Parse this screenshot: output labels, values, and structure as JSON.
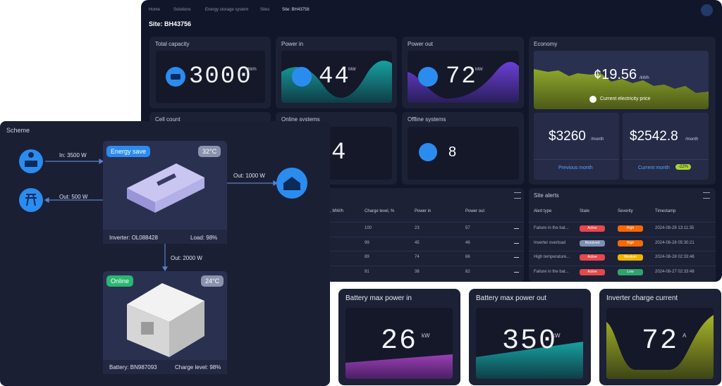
{
  "breadcrumb": [
    "Home",
    "Solutions",
    "Energy storage system",
    "Sites",
    "Site: BH43756"
  ],
  "title": "Site: BH43756",
  "cards": {
    "total_capacity": {
      "label": "Total capacity",
      "value": "3000",
      "unit": "MW/h"
    },
    "power_in": {
      "label": "Power in",
      "value": "44",
      "unit": "MW"
    },
    "power_out": {
      "label": "Power out",
      "value": "72",
      "unit": "MW"
    },
    "cell_count": {
      "label": "Cell count"
    },
    "online_systems": {
      "label": "Online systems",
      "value": "4"
    },
    "offline_systems": {
      "label": "Offline systems",
      "value": "8"
    }
  },
  "economy": {
    "label": "Economy",
    "price": "¢19.56",
    "price_unit": "/kWh",
    "price_caption": "Current electricity price",
    "previous": {
      "value": "$3260",
      "unit": "/month",
      "label": "Previous month"
    },
    "current": {
      "value": "$2542.8",
      "unit": "/month",
      "label": "Current month",
      "change": "-22%"
    }
  },
  "systems_table": {
    "columns": [
      ", MW/h",
      "Charge level, %",
      "Power in",
      "Power out"
    ],
    "rows": [
      [
        "100",
        "23",
        "57"
      ],
      [
        "99",
        "45",
        "46"
      ],
      [
        "89",
        "74",
        "66"
      ],
      [
        "91",
        "38",
        "82"
      ]
    ]
  },
  "alerts": {
    "title": "Site alerts",
    "columns": [
      "Alert type",
      "State",
      "Severity",
      "Timestamp"
    ],
    "rows": [
      {
        "type": "Failure in the bat...",
        "state": "Active",
        "severity": "High",
        "timestamp": "2024-08-28 13:11:35"
      },
      {
        "type": "Inverter overload",
        "state": "Resolved",
        "severity": "High",
        "timestamp": "2024-08-28 05:30:21"
      },
      {
        "type": "High temperature...",
        "state": "Active",
        "severity": "Medium",
        "timestamp": "2024-08-28 02:33:48"
      },
      {
        "type": "Failure in the bat...",
        "state": "Active",
        "severity": "Low",
        "timestamp": "2024-08-27 02:33:48"
      }
    ]
  },
  "scheme": {
    "title": "Scheme",
    "in": "In: 3500 W",
    "grid_out": "Out: 500 W",
    "home_out": "Out: 1000 W",
    "battery_flow": "Out: 2000 W",
    "inverter": {
      "status": "Energy save",
      "temperature": "32°C",
      "id": "Inverter: OL088428",
      "load": "Load: 98%"
    },
    "battery": {
      "status": "Online",
      "temperature": "24°C",
      "id": "Battery: BN987093",
      "charge": "Charge level: 98%"
    }
  },
  "kpis": [
    {
      "label": "Battery max power in",
      "value": "26",
      "unit": "kW"
    },
    {
      "label": "Battery max power out",
      "value": "350",
      "unit": "kW"
    },
    {
      "label": "Inverter charge current",
      "value": "72",
      "unit": "A"
    }
  ]
}
